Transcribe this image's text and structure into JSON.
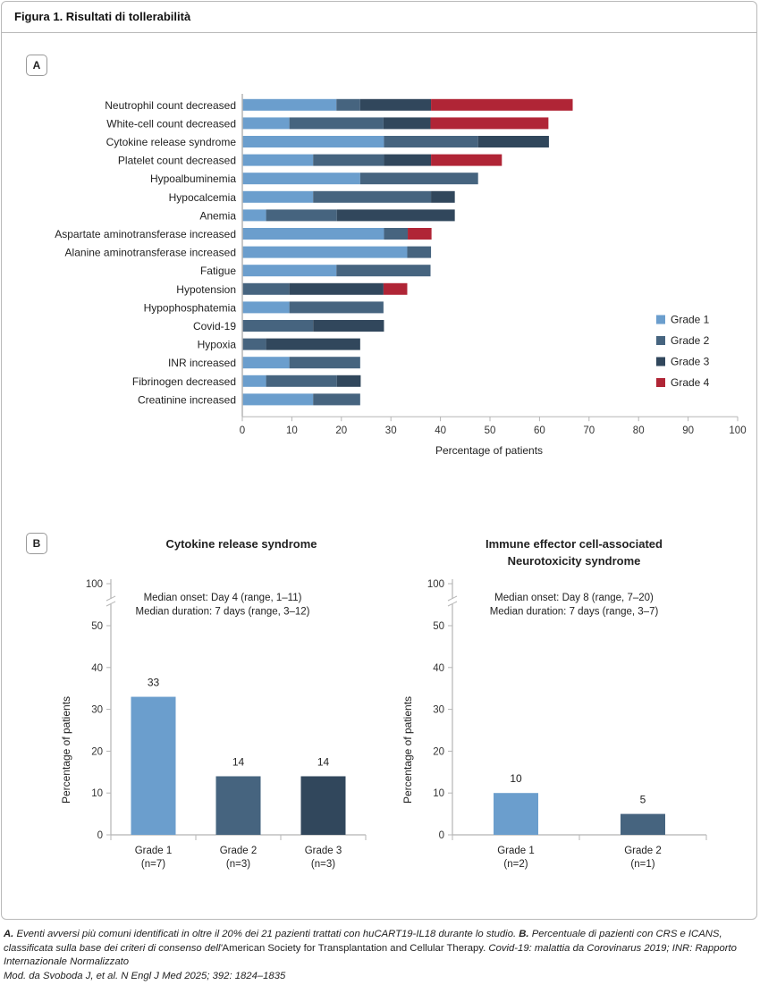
{
  "figure": {
    "title": "Figura 1. Risultati di tollerabilità",
    "panel_a_tag": "A",
    "panel_b_tag": "B"
  },
  "colors": {
    "grade1": "#6b9ecd",
    "grade2": "#46647f",
    "grade3": "#31475c",
    "grade4": "#b02536",
    "axis": "#b5b5b5"
  },
  "chart_data": [
    {
      "type": "bar",
      "orientation": "horizontal",
      "stacked": true,
      "title": "",
      "xlabel": "Percentage of patients",
      "ylabel": "",
      "xlim": [
        0,
        100
      ],
      "xticks": [
        0,
        10,
        20,
        30,
        40,
        50,
        60,
        70,
        80,
        90,
        100
      ],
      "legend_position": "right",
      "categories": [
        "Neutrophil count decreased",
        "White-cell count decreased",
        "Cytokine release syndrome",
        "Platelet count decreased",
        "Hypoalbuminemia",
        "Hypocalcemia",
        "Anemia",
        "Aspartate aminotransferase increased",
        "Alanine aminotransferase increased",
        "Fatigue",
        "Hypotension",
        "Hypophosphatemia",
        "Covid-19",
        "Hypoxia",
        "INR increased",
        "Fibrinogen decreased",
        "Creatinine increased"
      ],
      "series": [
        {
          "name": "Grade 1",
          "values": [
            19.0,
            9.5,
            28.6,
            14.3,
            23.8,
            14.3,
            4.8,
            28.6,
            33.3,
            19.0,
            0,
            9.5,
            0,
            0,
            9.5,
            4.8,
            14.3
          ]
        },
        {
          "name": "Grade 2",
          "values": [
            4.8,
            19.0,
            19.0,
            14.3,
            23.8,
            23.8,
            14.3,
            4.8,
            4.8,
            19.0,
            9.5,
            19.0,
            14.3,
            4.8,
            14.3,
            14.3,
            9.5
          ]
        },
        {
          "name": "Grade 3",
          "values": [
            14.3,
            9.5,
            14.3,
            9.5,
            0,
            4.8,
            23.8,
            0,
            0,
            0,
            19.0,
            0,
            14.3,
            19.0,
            0,
            4.8,
            0
          ]
        },
        {
          "name": "Grade 4",
          "values": [
            28.6,
            23.8,
            0,
            14.3,
            0,
            0,
            0,
            4.8,
            0,
            0,
            4.8,
            0,
            0,
            0,
            0,
            0,
            0
          ]
        }
      ]
    },
    {
      "type": "bar",
      "title": "Cytokine release syndrome",
      "ylabel": "Percentage of patients",
      "xlabel": "",
      "ylim": [
        0,
        100
      ],
      "yticks": [
        0,
        10,
        20,
        30,
        40,
        50,
        100
      ],
      "axis_break": [
        50,
        100
      ],
      "annotation": [
        "Median onset: Day 4 (range, 1–11)",
        "Median duration: 7 days (range, 3–12)"
      ],
      "categories": [
        {
          "label": "Grade 1",
          "n": "(n=7)"
        },
        {
          "label": "Grade 2",
          "n": "(n=3)"
        },
        {
          "label": "Grade 3",
          "n": "(n=3)"
        }
      ],
      "values": [
        33,
        14,
        14
      ],
      "data_labels": [
        "33",
        "14",
        "14"
      ],
      "bar_grades": [
        1,
        2,
        3
      ]
    },
    {
      "type": "bar",
      "title": "Immune effector cell-associated Neurotoxicity syndrome",
      "title_lines": [
        "Immune effector cell-associated",
        "Neurotoxicity syndrome"
      ],
      "ylabel": "Percentage of patients",
      "xlabel": "",
      "ylim": [
        0,
        100
      ],
      "yticks": [
        0,
        10,
        20,
        30,
        40,
        50,
        100
      ],
      "axis_break": [
        50,
        100
      ],
      "annotation": [
        "Median onset: Day 8 (range, 7–20)",
        "Median duration: 7 days (range, 3–7)"
      ],
      "categories": [
        {
          "label": "Grade 1",
          "n": "(n=2)"
        },
        {
          "label": "Grade 2",
          "n": "(n=1)"
        }
      ],
      "values": [
        10,
        5
      ],
      "data_labels": [
        "10",
        "5"
      ],
      "bar_grades": [
        1,
        2
      ]
    }
  ],
  "caption": {
    "a_tag": "A.",
    "a_text": " Eventi avversi più comuni identificati in oltre il 20% dei 21 pazienti trattati con huCART19-IL18 durante lo studio. ",
    "b_tag": "B.",
    "b_text": " Percentuale di pazienti con CRS e ICANS, classificata sulla base dei criteri di consenso dell'",
    "b_upright": "American Society for Transplantation and Cellular Therapy.",
    "abbrev": " Covid-19: malattia da Corovinarus 2019; INR: Rapporto Internazionale Normalizzato",
    "source": "Mod. da Svoboda J, et al. N Engl J Med 2025; 392: 1824–1835"
  }
}
